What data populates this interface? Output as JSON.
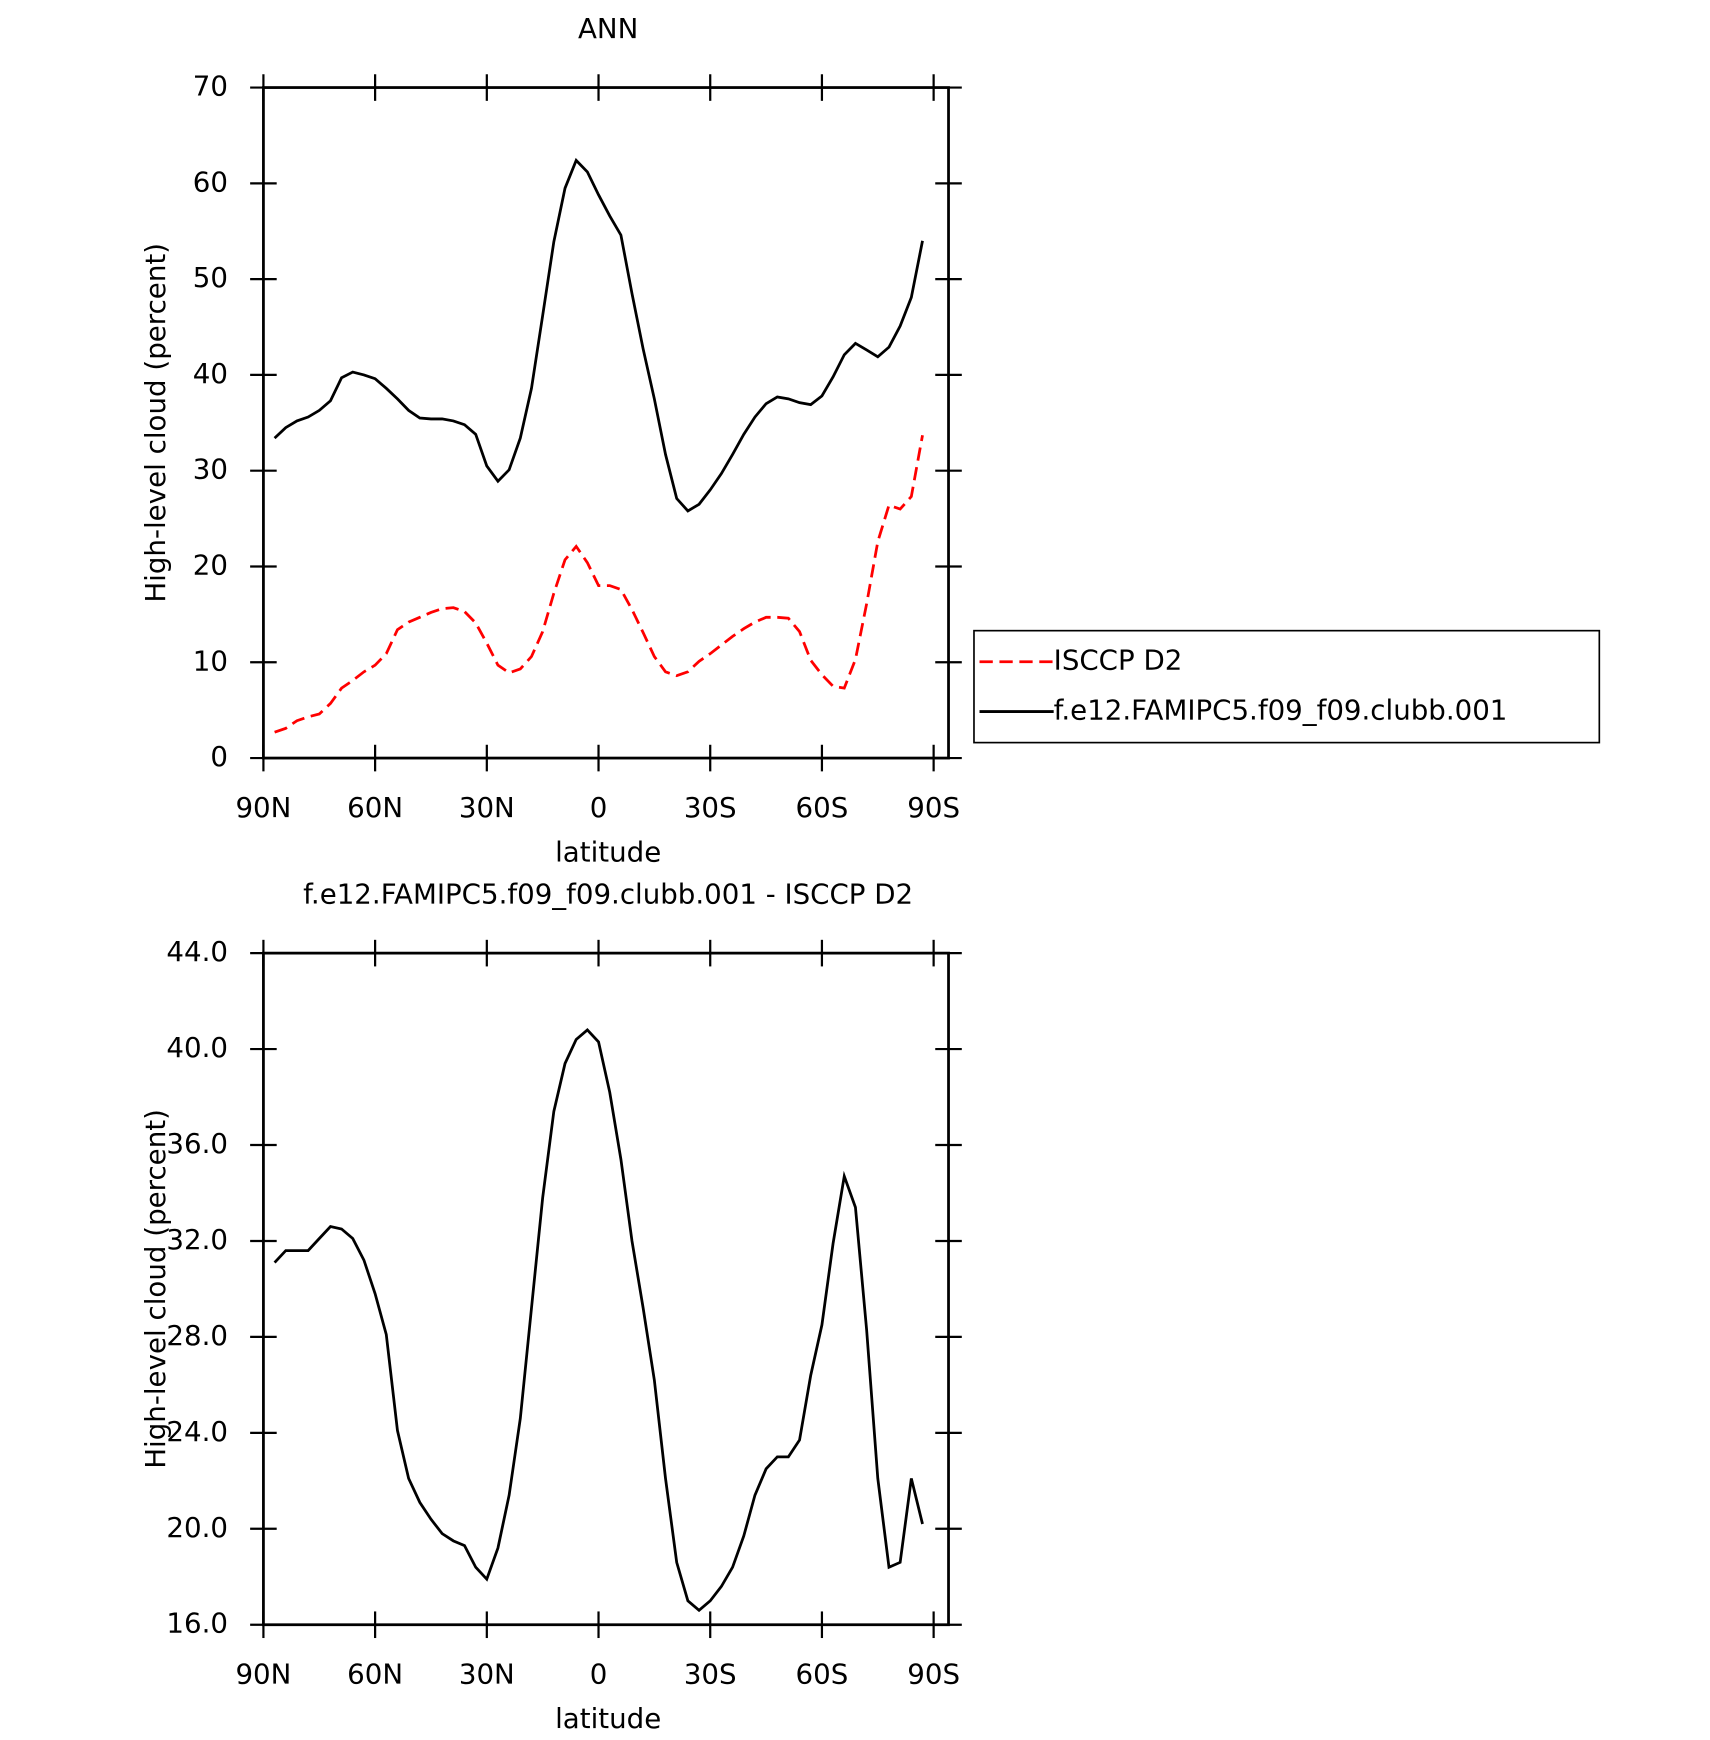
{
  "chart_data": [
    {
      "type": "line",
      "title": "ANN",
      "xlabel": "latitude",
      "ylabel": "High-level cloud (percent)",
      "x": [
        87,
        84,
        81,
        78,
        75,
        72,
        69,
        66,
        63,
        60,
        57,
        54,
        51,
        48,
        45,
        42,
        39,
        36,
        33,
        30,
        27,
        24,
        21,
        18,
        15,
        12,
        9,
        6,
        3,
        0,
        -3,
        -6,
        -9,
        -12,
        -15,
        -18,
        -21,
        -24,
        -27,
        -30,
        -33,
        -36,
        -39,
        -42,
        -45,
        -48,
        -51,
        -54,
        -57,
        -60,
        -63,
        -66,
        -69,
        -72,
        -75,
        -78,
        -81,
        -84,
        -87
      ],
      "xlim": [
        90,
        -94
      ],
      "xticks": [
        {
          "value": 90,
          "label": "90N"
        },
        {
          "value": 60,
          "label": "60N"
        },
        {
          "value": 30,
          "label": "30N"
        },
        0,
        {
          "value": -30,
          "label": "30S"
        },
        {
          "value": -60,
          "label": "60S"
        },
        {
          "value": -90,
          "label": "90S"
        }
      ],
      "ylim": [
        0,
        70
      ],
      "yticks": [
        0,
        10,
        20,
        30,
        40,
        50,
        60,
        70
      ],
      "legend": "right",
      "series": [
        {
          "name": "ISCCP D2",
          "color": "#ff0000",
          "line_style": "dashed",
          "values": [
            2.7,
            3.1,
            3.9,
            4.3,
            4.6,
            5.7,
            7.3,
            8.1,
            9.0,
            9.7,
            10.9,
            13.4,
            14.2,
            14.7,
            15.2,
            15.6,
            15.7,
            15.3,
            14.1,
            12.0,
            9.7,
            8.9,
            9.3,
            10.6,
            13.2,
            17.2,
            20.7,
            22.1,
            20.4,
            18.0,
            18.0,
            17.6,
            15.5,
            13.1,
            10.6,
            9.0,
            8.6,
            9.0,
            10.1,
            10.9,
            11.8,
            12.7,
            13.5,
            14.2,
            14.7,
            14.7,
            14.6,
            13.2,
            10.2,
            8.7,
            7.5,
            7.3,
            10.3,
            16.1,
            22.6,
            26.4,
            26.0,
            27.3,
            33.7
          ]
        },
        {
          "name": "f.e12.FAMIPC5.f09_f09.clubb.001",
          "color": "#000000",
          "line_style": "solid",
          "values": [
            33.4,
            34.5,
            35.2,
            35.6,
            36.3,
            37.3,
            39.7,
            40.3,
            40.0,
            39.6,
            38.6,
            37.5,
            36.3,
            35.5,
            35.4,
            35.4,
            35.2,
            34.8,
            33.8,
            30.5,
            28.9,
            30.1,
            33.4,
            38.6,
            46.2,
            53.9,
            59.5,
            62.4,
            61.2,
            58.8,
            56.6,
            54.6,
            48.5,
            42.7,
            37.5,
            31.7,
            27.1,
            25.8,
            26.5,
            28.0,
            29.7,
            31.7,
            33.8,
            35.6,
            37.0,
            37.7,
            37.5,
            37.1,
            36.9,
            37.8,
            39.8,
            42.1,
            43.3,
            42.6,
            41.9,
            42.9,
            45.1,
            48.1,
            54.0
          ]
        }
      ]
    },
    {
      "type": "line",
      "title": "f.e12.FAMIPC5.f09_f09.clubb.001 - ISCCP D2",
      "xlabel": "latitude",
      "ylabel": "High-level cloud (percent)",
      "x": [
        87,
        84,
        81,
        78,
        75,
        72,
        69,
        66,
        63,
        60,
        57,
        54,
        51,
        48,
        45,
        42,
        39,
        36,
        33,
        30,
        27,
        24,
        21,
        18,
        15,
        12,
        9,
        6,
        3,
        0,
        -3,
        -6,
        -9,
        -12,
        -15,
        -18,
        -21,
        -24,
        -27,
        -30,
        -33,
        -36,
        -39,
        -42,
        -45,
        -48,
        -51,
        -54,
        -57,
        -60,
        -63,
        -66,
        -69,
        -72,
        -75,
        -78,
        -81,
        -84,
        -87
      ],
      "xlim": [
        90,
        -94
      ],
      "xticks": [
        {
          "value": 90,
          "label": "90N"
        },
        {
          "value": 60,
          "label": "60N"
        },
        {
          "value": 30,
          "label": "30N"
        },
        0,
        {
          "value": -30,
          "label": "30S"
        },
        {
          "value": -60,
          "label": "60S"
        },
        {
          "value": -90,
          "label": "90S"
        }
      ],
      "ylim": [
        16,
        44
      ],
      "yticks": [
        {
          "value": 16,
          "label": "16.0"
        },
        {
          "value": 20,
          "label": "20.0"
        },
        {
          "value": 24,
          "label": "24.0"
        },
        {
          "value": 28,
          "label": "28.0"
        },
        {
          "value": 32,
          "label": "32.0"
        },
        {
          "value": 36,
          "label": "36.0"
        },
        {
          "value": 40,
          "label": "40.0"
        },
        {
          "value": 44,
          "label": "44.0"
        }
      ],
      "series": [
        {
          "color": "#000000",
          "line_style": "solid",
          "values": [
            31.1,
            31.6,
            31.6,
            31.6,
            32.1,
            32.6,
            32.5,
            32.1,
            31.2,
            29.8,
            28.1,
            24.1,
            22.1,
            21.1,
            20.4,
            19.8,
            19.5,
            19.3,
            18.4,
            17.9,
            19.2,
            21.4,
            24.6,
            29.2,
            33.8,
            37.4,
            39.4,
            40.4,
            40.8,
            40.3,
            38.2,
            35.4,
            32.0,
            29.2,
            26.2,
            22.1,
            18.6,
            17.0,
            16.6,
            17.0,
            17.6,
            18.4,
            19.7,
            21.4,
            22.5,
            23.0,
            23.0,
            23.7,
            26.4,
            28.5,
            31.9,
            34.7,
            33.4,
            28.3,
            22.1,
            18.4,
            18.6,
            22.1,
            20.2
          ]
        }
      ]
    }
  ]
}
